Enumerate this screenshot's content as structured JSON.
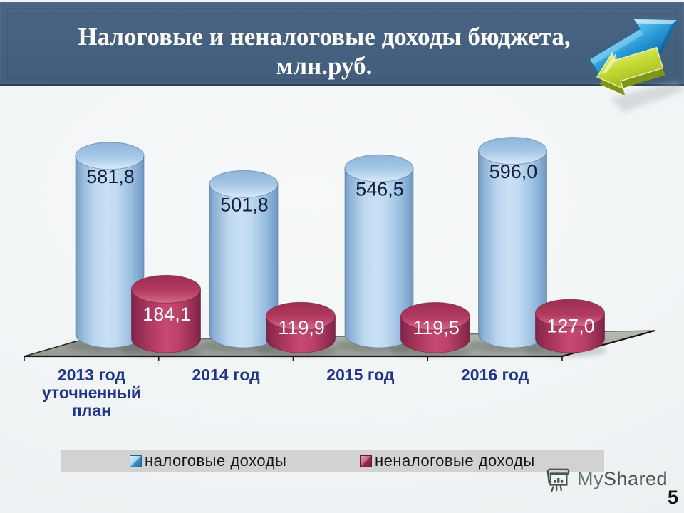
{
  "slide": {
    "title_line1": "Налоговые и неналоговые доходы бюджета,",
    "title_line2": "млн.руб.",
    "page_number": "5",
    "watermark_my": "My",
    "watermark_shared": "Shared"
  },
  "chart_data": {
    "type": "bar",
    "subtype": "3d-cylinder",
    "categories": [
      "2013 год уточненный план",
      "2014 год",
      "2015 год",
      "2016 год"
    ],
    "series": [
      {
        "name": "налоговые доходы",
        "color": "#a9cbe9",
        "values": [
          581.8,
          501.8,
          546.5,
          596.0
        ],
        "labels": [
          "581,8",
          "501,8",
          "546,5",
          "596,0"
        ]
      },
      {
        "name": "неналоговые доходы",
        "color": "#bb3f66",
        "values": [
          184.1,
          119.9,
          119.5,
          127.0
        ],
        "labels": [
          "184,1",
          "119,9",
          "119,5",
          "127,0"
        ]
      }
    ],
    "title": "Налоговые и неналоговые доходы бюджета, млн.руб.",
    "xlabel": "",
    "ylabel": "",
    "legend_position": "bottom",
    "grid": false
  }
}
